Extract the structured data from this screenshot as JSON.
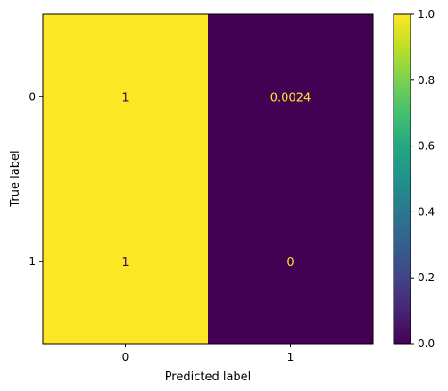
{
  "chart_data": {
    "type": "heatmap",
    "title": "",
    "xlabel": "Predicted label",
    "ylabel": "True label",
    "x_categories": [
      "0",
      "1"
    ],
    "y_categories": [
      "0",
      "1"
    ],
    "values": [
      [
        1,
        0.0024
      ],
      [
        1,
        0
      ]
    ],
    "cell_labels": [
      [
        "1",
        "0.0024"
      ],
      [
        "1",
        "0"
      ]
    ],
    "colorbar": {
      "range": [
        0,
        1
      ],
      "ticks": [
        "0.0",
        "0.2",
        "0.4",
        "0.6",
        "0.8",
        "1.0"
      ],
      "colormap": "viridis"
    },
    "colors": {
      "high": "#fde725",
      "low": "#440154",
      "text_on_high": "#440154",
      "text_on_low": "#fde725"
    }
  }
}
